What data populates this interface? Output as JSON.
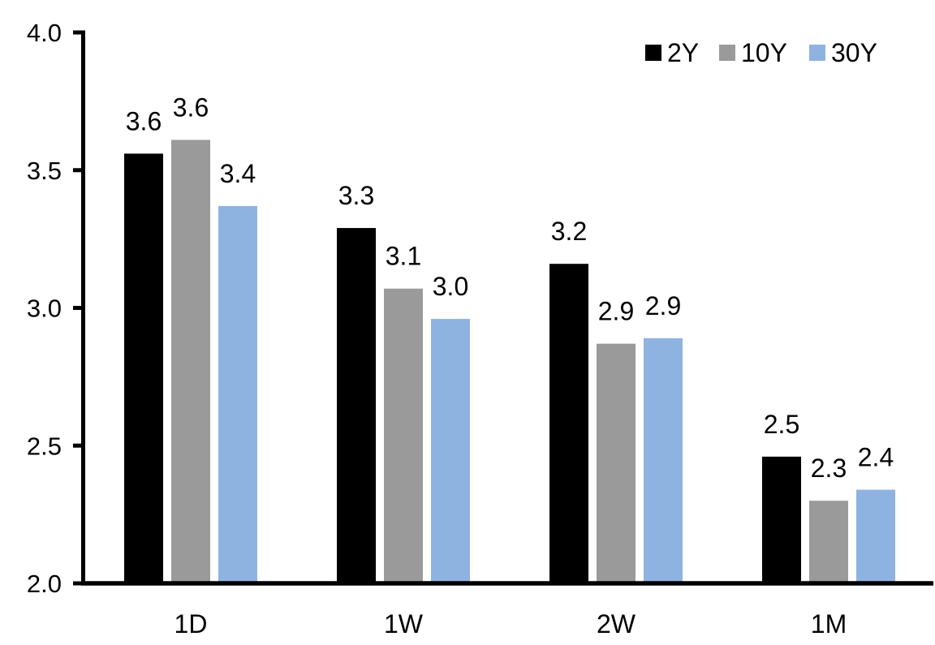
{
  "chart_data": {
    "type": "bar",
    "title": "",
    "xlabel": "",
    "ylabel": "",
    "categories": [
      "1D",
      "1W",
      "2W",
      "1M"
    ],
    "series": [
      {
        "name": "2Y",
        "color": "#000000",
        "values": [
          3.6,
          3.3,
          3.2,
          2.5
        ],
        "labels": [
          "3.6",
          "3.3",
          "3.2",
          "2.5"
        ],
        "bar_heights_precise": [
          3.56,
          3.29,
          3.16,
          2.46
        ]
      },
      {
        "name": "10Y",
        "color": "#9a9a9a",
        "values": [
          3.6,
          3.1,
          2.9,
          2.3
        ],
        "labels": [
          "3.6",
          "3.1",
          "2.9",
          "2.3"
        ],
        "bar_heights_precise": [
          3.61,
          3.07,
          2.87,
          2.3
        ]
      },
      {
        "name": "30Y",
        "color": "#8fb3e1",
        "values": [
          3.4,
          3.0,
          2.9,
          2.4
        ],
        "labels": [
          "3.4",
          "3.0",
          "2.9",
          "2.4"
        ],
        "bar_heights_precise": [
          3.37,
          2.96,
          2.89,
          2.34
        ]
      }
    ],
    "ylim": [
      2.0,
      4.0
    ],
    "ytick_values": [
      2.0,
      2.5,
      3.0,
      3.5,
      4.0
    ],
    "ytick_labels": [
      "2.0",
      "2.5",
      "3.0",
      "3.5",
      "4.0"
    ],
    "grid": false,
    "data_labels": true,
    "legend": {
      "position": "top-right",
      "entries": [
        "2Y",
        "10Y",
        "30Y"
      ]
    },
    "colors": {
      "axis": "#000000",
      "text": "#000000",
      "background": "#ffffff"
    }
  }
}
